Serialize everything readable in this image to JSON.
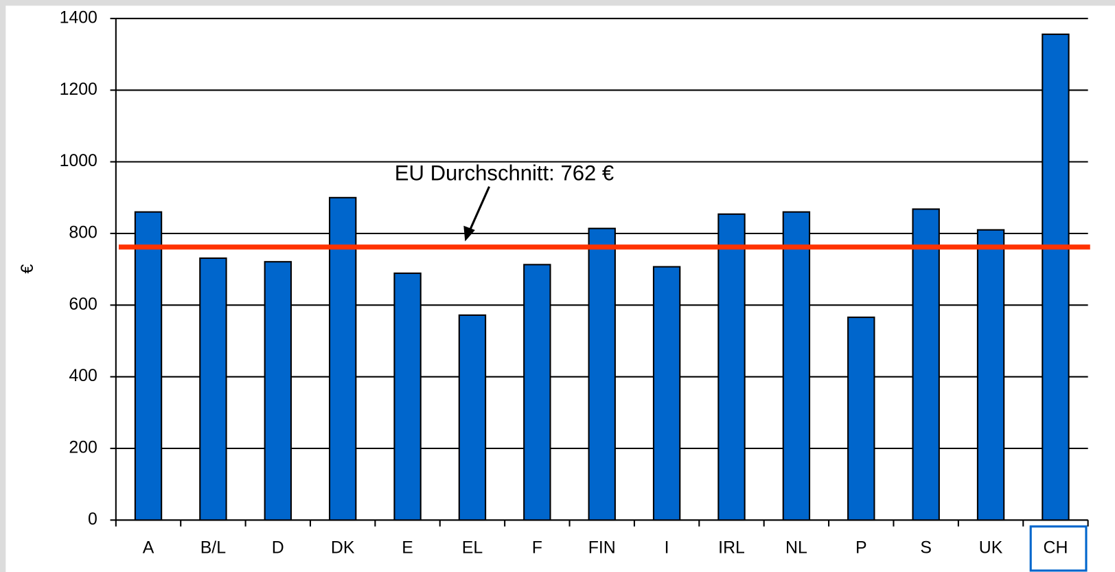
{
  "chart_data": {
    "type": "bar",
    "y_label": "€",
    "categories": [
      "A",
      "B/L",
      "D",
      "DK",
      "E",
      "EL",
      "F",
      "FIN",
      "I",
      "IRL",
      "NL",
      "P",
      "S",
      "UK",
      "CH"
    ],
    "values": [
      860,
      731,
      721,
      900,
      689,
      572,
      713,
      814,
      707,
      854,
      860,
      566,
      868,
      810,
      1356
    ],
    "color": "#0066cc",
    "ylim": [
      0,
      1400
    ],
    "yticks": [
      0,
      200,
      400,
      600,
      800,
      1000,
      1200,
      1400
    ],
    "grid": true,
    "reference_line": {
      "value": 762,
      "color": "#ff3300",
      "label": "EU Durchschnitt: 762 €"
    },
    "highlight": {
      "category": "CH",
      "color": "#0066cc"
    }
  }
}
